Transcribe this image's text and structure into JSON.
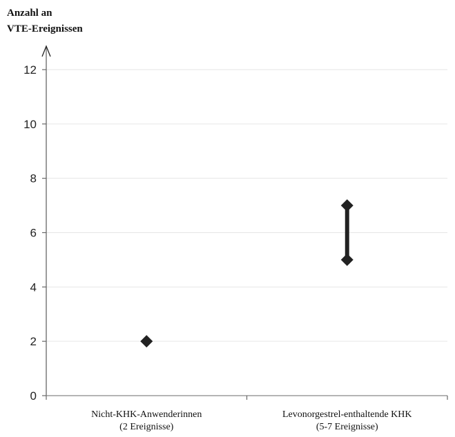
{
  "chart_data": {
    "type": "scatter",
    "ylabel_lines": [
      "Anzahl an",
      "VTE-Ereignissen"
    ],
    "ylim": [
      0,
      12
    ],
    "yticks": [
      0,
      2,
      4,
      6,
      8,
      10,
      12
    ],
    "grid": true,
    "categories": [
      {
        "lines": [
          "Nicht-KHK-Anwenderinnen",
          "(2 Ereignisse)"
        ]
      },
      {
        "lines": [
          "Levonorgestrel-enthaltende KHK",
          "(5-7 Ereignisse)"
        ]
      }
    ],
    "points": [
      {
        "category": 0,
        "value": 2
      },
      {
        "category": 1,
        "value": 5
      },
      {
        "category": 1,
        "value": 7
      }
    ],
    "ranges": [
      {
        "category": 1,
        "low": 5,
        "high": 7
      }
    ],
    "colors": {
      "marker": "#222222",
      "grid": "#e6e6e6",
      "axis": "#888888"
    }
  }
}
